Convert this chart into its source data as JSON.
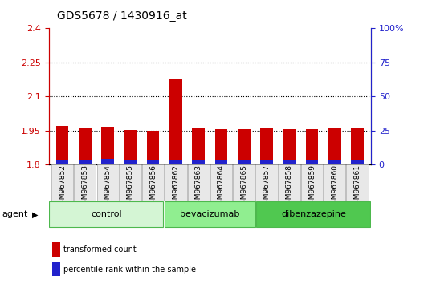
{
  "title": "GDS5678 / 1430916_at",
  "samples": [
    "GSM967852",
    "GSM967853",
    "GSM967854",
    "GSM967855",
    "GSM967856",
    "GSM967862",
    "GSM967863",
    "GSM967864",
    "GSM967865",
    "GSM967857",
    "GSM967858",
    "GSM967859",
    "GSM967860",
    "GSM967861"
  ],
  "transformed_count": [
    1.97,
    1.965,
    1.967,
    1.952,
    1.948,
    2.175,
    1.965,
    1.957,
    1.956,
    1.965,
    1.957,
    1.956,
    1.96,
    1.962
  ],
  "percentile_rank": [
    3.5,
    3.5,
    4.5,
    3.5,
    3.0,
    4.0,
    3.0,
    3.5,
    3.5,
    4.0,
    3.5,
    3.5,
    3.5,
    3.5
  ],
  "ylim_left": [
    1.8,
    2.4
  ],
  "ylim_right": [
    0,
    100
  ],
  "yticks_left": [
    1.8,
    1.95,
    2.1,
    2.25,
    2.4
  ],
  "yticks_right": [
    0,
    25,
    50,
    75,
    100
  ],
  "ytick_labels_left": [
    "1.8",
    "1.95",
    "2.1",
    "2.25",
    "2.4"
  ],
  "ytick_labels_right": [
    "0",
    "25",
    "50",
    "75",
    "100%"
  ],
  "groups": [
    {
      "label": "control",
      "start": 0,
      "end": 5,
      "color": "#d4f5d4",
      "edge_color": "#4db84d"
    },
    {
      "label": "bevacizumab",
      "start": 5,
      "end": 9,
      "color": "#90ee90",
      "edge_color": "#4db84d"
    },
    {
      "label": "dibenzazepine",
      "start": 9,
      "end": 14,
      "color": "#50c850",
      "edge_color": "#4db84d"
    }
  ],
  "agent_label": "agent",
  "bar_color_red": "#cc0000",
  "bar_color_blue": "#2222cc",
  "bar_width": 0.55,
  "baseline": 1.8,
  "legend_items": [
    {
      "label": "transformed count",
      "color": "#cc0000"
    },
    {
      "label": "percentile rank within the sample",
      "color": "#2222cc"
    }
  ],
  "grid_linestyle": ":",
  "grid_linewidth": 0.8,
  "title_fontsize": 10,
  "tick_label_fontsize": 6.5,
  "axis_color_left": "#cc0000",
  "axis_color_right": "#2222cc",
  "bg_color": "#e8e8e8"
}
